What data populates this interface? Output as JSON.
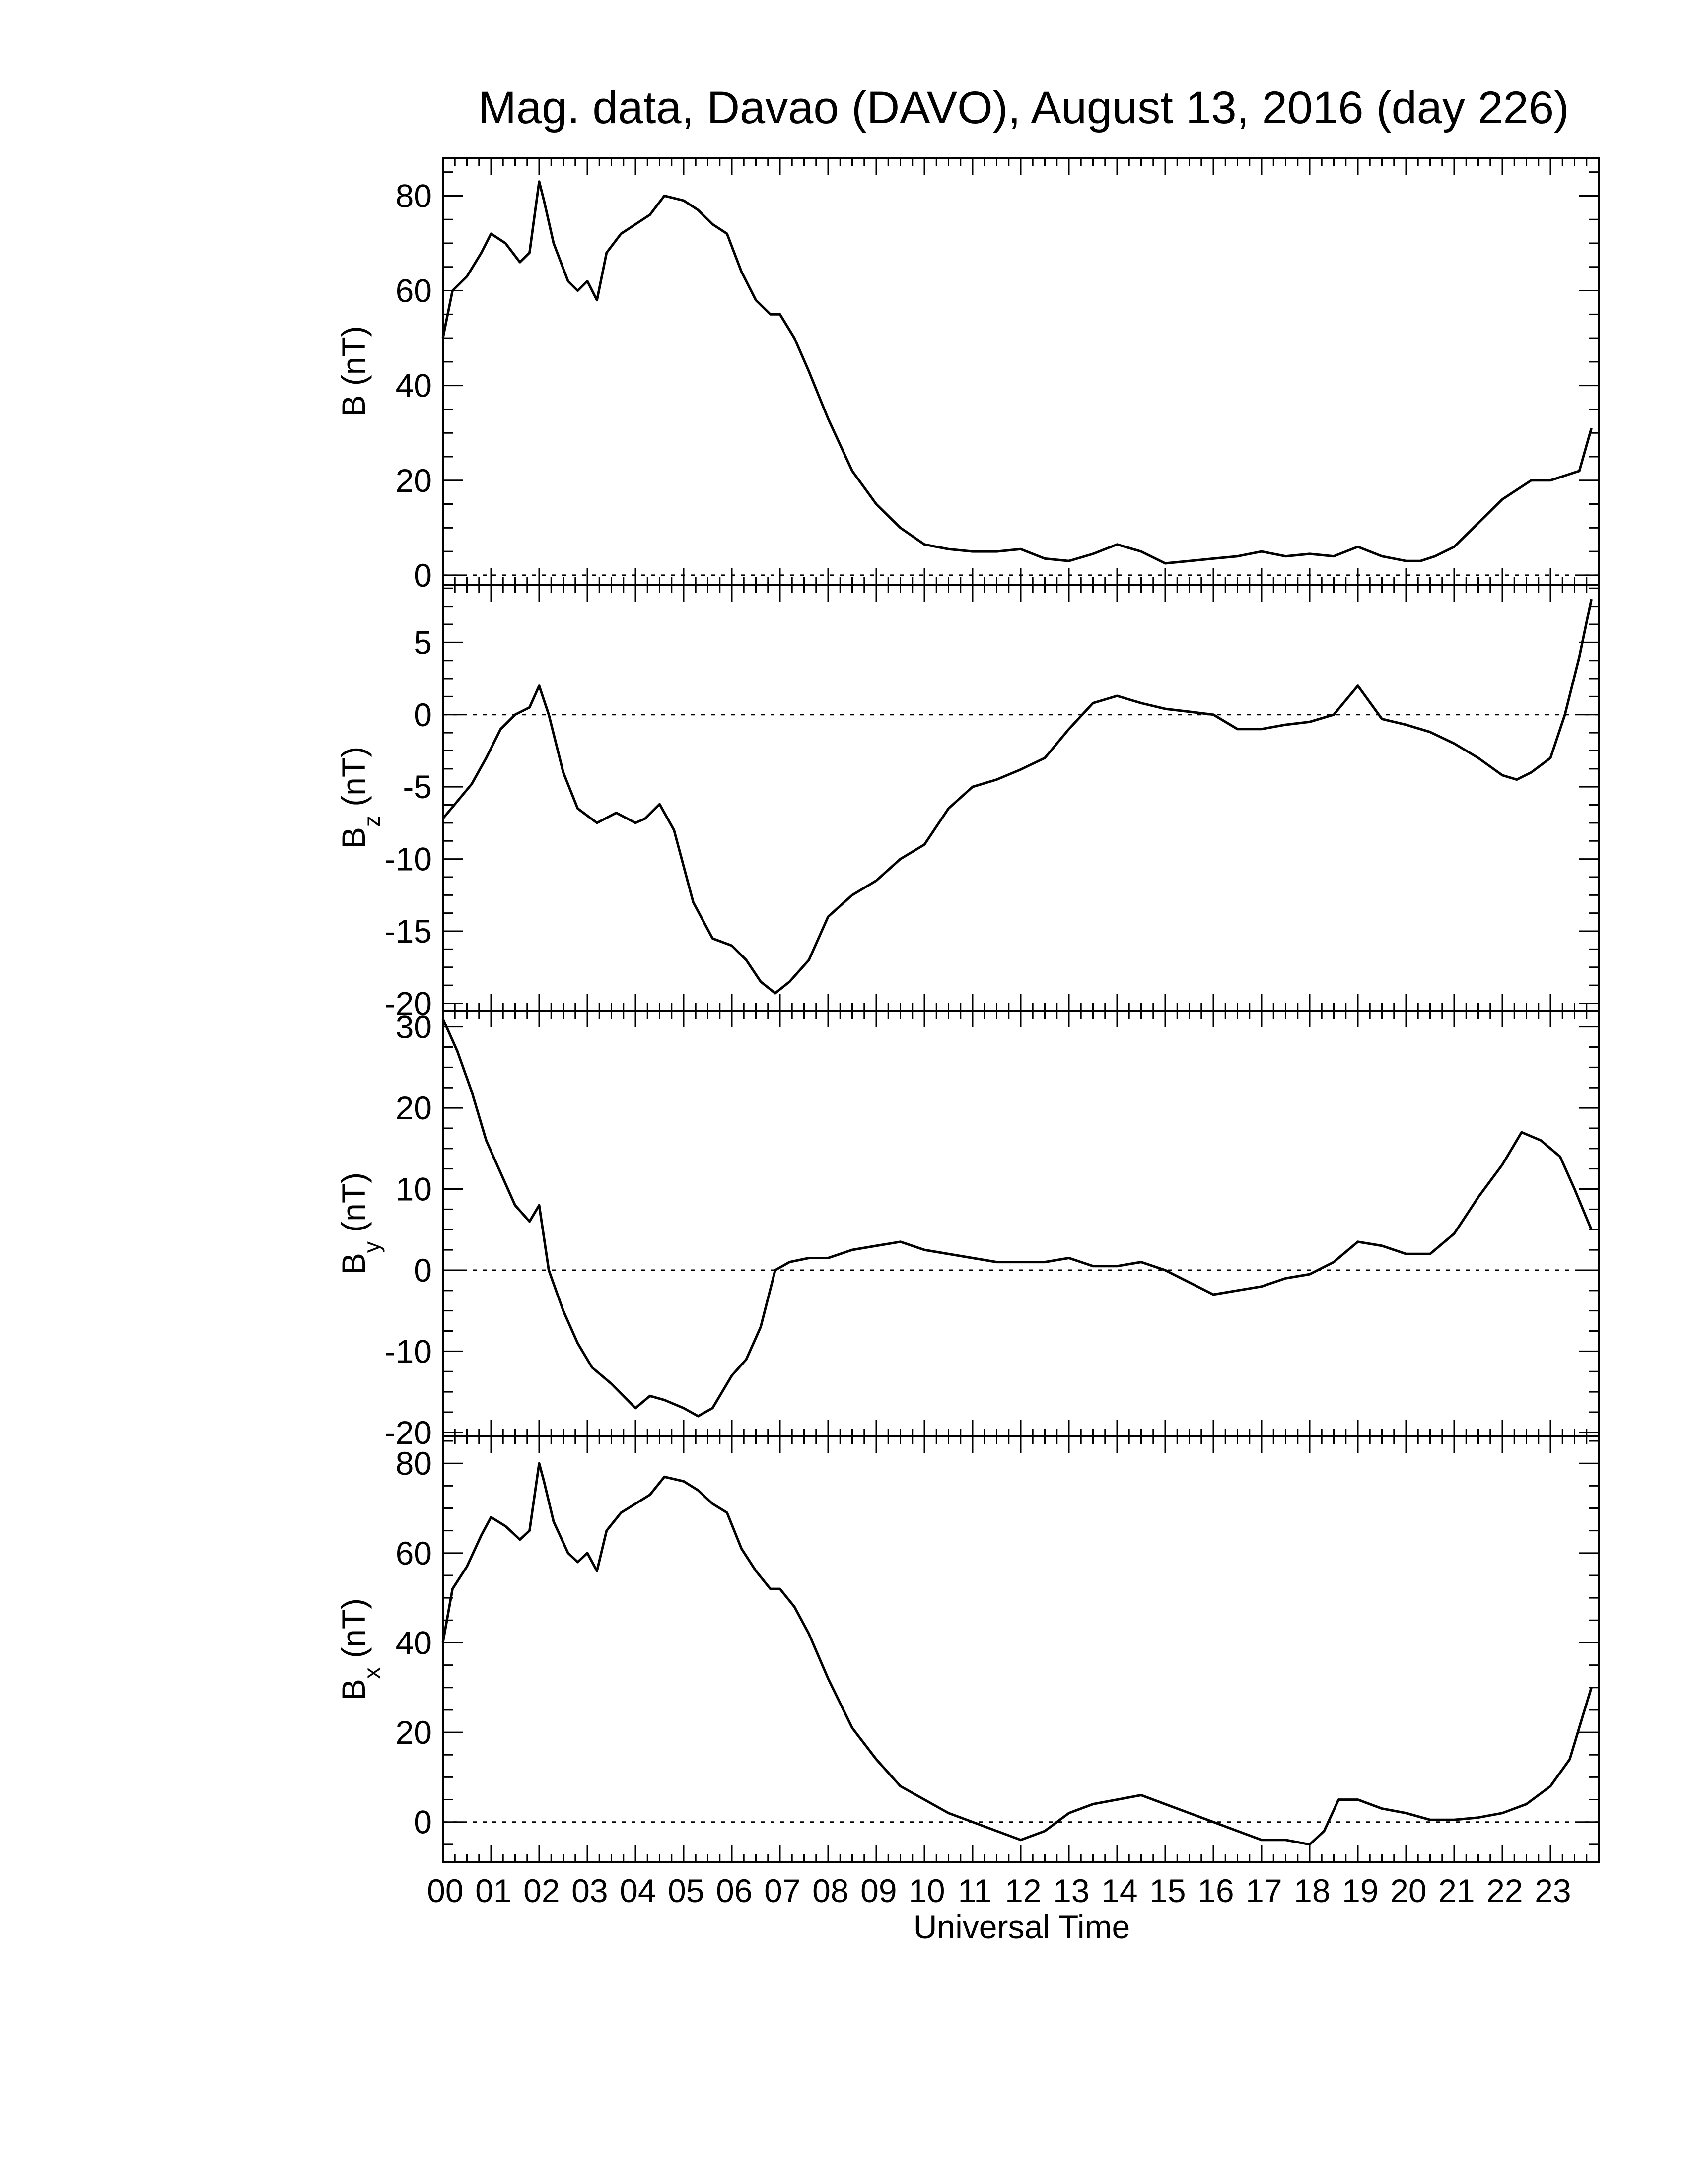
{
  "title": "Mag. data, Davao (DAVO), August 13, 2016 (day 226)",
  "xlabel": "Universal Time",
  "x_tick_labels": [
    "00",
    "01",
    "02",
    "03",
    "04",
    "05",
    "06",
    "07",
    "08",
    "09",
    "10",
    "11",
    "12",
    "13",
    "14",
    "15",
    "16",
    "17",
    "18",
    "19",
    "20",
    "21",
    "22",
    "23"
  ],
  "chart_data": [
    {
      "type": "line",
      "ylabel": "B (nT)",
      "ylabel_main": "B",
      "ylabel_sub": "",
      "ylabel_unit": " (nT)",
      "xlim": [
        0,
        24
      ],
      "ylim": [
        -2,
        88
      ],
      "yticks": [
        0,
        20,
        40,
        60,
        80
      ],
      "zero_line": true,
      "x": [
        0,
        0.2,
        0.5,
        0.8,
        1.0,
        1.3,
        1.6,
        1.8,
        2.0,
        2.1,
        2.3,
        2.6,
        2.8,
        3.0,
        3.2,
        3.4,
        3.7,
        4.0,
        4.3,
        4.6,
        5.0,
        5.3,
        5.6,
        5.9,
        6.2,
        6.5,
        6.8,
        7.0,
        7.3,
        7.6,
        8.0,
        8.5,
        9.0,
        9.5,
        10.0,
        10.5,
        11.0,
        11.5,
        12.0,
        12.5,
        13.0,
        13.5,
        14.0,
        14.5,
        15.0,
        15.5,
        16.0,
        16.5,
        17.0,
        17.5,
        18.0,
        18.5,
        19.0,
        19.5,
        20.0,
        20.3,
        20.6,
        21.0,
        21.5,
        22.0,
        22.3,
        22.6,
        23.0,
        23.3,
        23.6,
        23.85
      ],
      "y": [
        50,
        60,
        63,
        68,
        72,
        70,
        66,
        68,
        83,
        79,
        70,
        62,
        60,
        62,
        58,
        68,
        72,
        74,
        76,
        80,
        79,
        77,
        74,
        72,
        64,
        58,
        55,
        55,
        50,
        43,
        33,
        22,
        15,
        10,
        6.5,
        5.5,
        5,
        5,
        5.5,
        3.5,
        3,
        4.5,
        6.5,
        5,
        2.5,
        3,
        3.5,
        4,
        5,
        4,
        4.5,
        4,
        6,
        4,
        3,
        3,
        4,
        6,
        11,
        16,
        18,
        20,
        20,
        21,
        22,
        31
      ]
    },
    {
      "type": "line",
      "ylabel": "Bz (nT)",
      "ylabel_main": "B",
      "ylabel_sub": "z",
      "ylabel_unit": " (nT)",
      "xlim": [
        0,
        24
      ],
      "ylim": [
        -20.5,
        9
      ],
      "yticks": [
        5,
        0,
        -5,
        -10,
        -15,
        -20
      ],
      "zero_line": true,
      "x": [
        0,
        0.3,
        0.6,
        0.9,
        1.2,
        1.5,
        1.8,
        2.0,
        2.2,
        2.5,
        2.8,
        3.2,
        3.6,
        4.0,
        4.2,
        4.5,
        4.8,
        5.2,
        5.6,
        6.0,
        6.3,
        6.6,
        6.9,
        7.2,
        7.6,
        8.0,
        8.5,
        9.0,
        9.5,
        10.0,
        10.5,
        11.0,
        11.5,
        12.0,
        12.5,
        13.0,
        13.5,
        14.0,
        14.5,
        15.0,
        15.5,
        16.0,
        16.5,
        17.0,
        17.5,
        18.0,
        18.5,
        19.0,
        19.5,
        20.0,
        20.5,
        21.0,
        21.5,
        22.0,
        22.3,
        22.6,
        23.0,
        23.3,
        23.6,
        23.85
      ],
      "y": [
        -7.2,
        -6,
        -4.8,
        -3,
        -1,
        0,
        0.5,
        2,
        0,
        -4,
        -6.5,
        -7.5,
        -6.8,
        -7.5,
        -7.2,
        -6.2,
        -8,
        -13,
        -15.5,
        -16,
        -17,
        -18.5,
        -19.3,
        -18.5,
        -17,
        -14,
        -12.5,
        -11.5,
        -10,
        -9,
        -6.5,
        -5,
        -4.5,
        -3.8,
        -3,
        -1,
        0.8,
        1.3,
        0.8,
        0.4,
        0.2,
        0,
        -1,
        -1,
        -0.7,
        -0.5,
        0,
        2,
        -0.3,
        -0.7,
        -1.2,
        -2,
        -3,
        -4.2,
        -4.5,
        -4,
        -3,
        0,
        4,
        8
      ]
    },
    {
      "type": "line",
      "ylabel": "By (nT)",
      "ylabel_main": "B",
      "ylabel_sub": "y",
      "ylabel_unit": " (nT)",
      "xlim": [
        0,
        24
      ],
      "ylim": [
        -20.5,
        32
      ],
      "yticks": [
        30,
        20,
        10,
        0,
        -10,
        -20
      ],
      "zero_line": true,
      "x": [
        0,
        0.3,
        0.6,
        0.9,
        1.2,
        1.5,
        1.8,
        2.0,
        2.2,
        2.5,
        2.8,
        3.1,
        3.5,
        4.0,
        4.3,
        4.6,
        5.0,
        5.3,
        5.6,
        6.0,
        6.3,
        6.6,
        6.9,
        7.2,
        7.6,
        8.0,
        8.5,
        9.0,
        9.5,
        10.0,
        10.5,
        11.0,
        11.5,
        12.0,
        12.5,
        13.0,
        13.5,
        14.0,
        14.5,
        15.0,
        15.5,
        16.0,
        16.5,
        17.0,
        17.5,
        18.0,
        18.5,
        19.0,
        19.5,
        20.0,
        20.5,
        21.0,
        21.5,
        22.0,
        22.4,
        22.8,
        23.2,
        23.5,
        23.85
      ],
      "y": [
        31,
        27,
        22,
        16,
        12,
        8,
        6,
        8,
        0,
        -5,
        -9,
        -12,
        -14,
        -17,
        -15.5,
        -16,
        -17,
        -18,
        -17,
        -13,
        -11,
        -7,
        0,
        1,
        1.5,
        1.5,
        2.5,
        3,
        3.5,
        2.5,
        2,
        1.5,
        1,
        1,
        1,
        1.5,
        0.5,
        0.5,
        1,
        0,
        -1.5,
        -3,
        -2.5,
        -2,
        -1,
        -0.5,
        1,
        3.5,
        3,
        2,
        2,
        4.5,
        9,
        13,
        17,
        16,
        14,
        10,
        5
      ]
    },
    {
      "type": "line",
      "ylabel": "Bx (nT)",
      "ylabel_main": "B",
      "ylabel_sub": "x",
      "ylabel_unit": " (nT)",
      "xlim": [
        0,
        24
      ],
      "ylim": [
        -9,
        86
      ],
      "yticks": [
        80,
        60,
        40,
        20,
        0
      ],
      "zero_line": true,
      "x": [
        0,
        0.2,
        0.5,
        0.8,
        1.0,
        1.3,
        1.6,
        1.8,
        2.0,
        2.1,
        2.3,
        2.6,
        2.8,
        3.0,
        3.2,
        3.4,
        3.7,
        4.0,
        4.3,
        4.6,
        5.0,
        5.3,
        5.6,
        5.9,
        6.2,
        6.5,
        6.8,
        7.0,
        7.3,
        7.6,
        8.0,
        8.5,
        9.0,
        9.5,
        10.0,
        10.5,
        11.0,
        11.5,
        12.0,
        12.5,
        13.0,
        13.5,
        14.0,
        14.5,
        15.0,
        15.5,
        16.0,
        16.5,
        17.0,
        17.5,
        18.0,
        18.3,
        18.6,
        19.0,
        19.5,
        20.0,
        20.5,
        21.0,
        21.5,
        22.0,
        22.5,
        23.0,
        23.4,
        23.85
      ],
      "y": [
        40,
        52,
        57,
        64,
        68,
        66,
        63,
        65,
        80,
        76,
        67,
        60,
        58,
        60,
        56,
        65,
        69,
        71,
        73,
        77,
        76,
        74,
        71,
        69,
        61,
        56,
        52,
        52,
        48,
        42,
        32,
        21,
        14,
        8,
        5,
        2,
        0,
        -2,
        -4,
        -2,
        2,
        4,
        5,
        6,
        4,
        2,
        0,
        -2,
        -4,
        -4,
        -5,
        -2,
        5,
        5,
        3,
        2,
        0.5,
        0.5,
        1,
        2,
        4,
        8,
        14,
        30
      ]
    }
  ]
}
